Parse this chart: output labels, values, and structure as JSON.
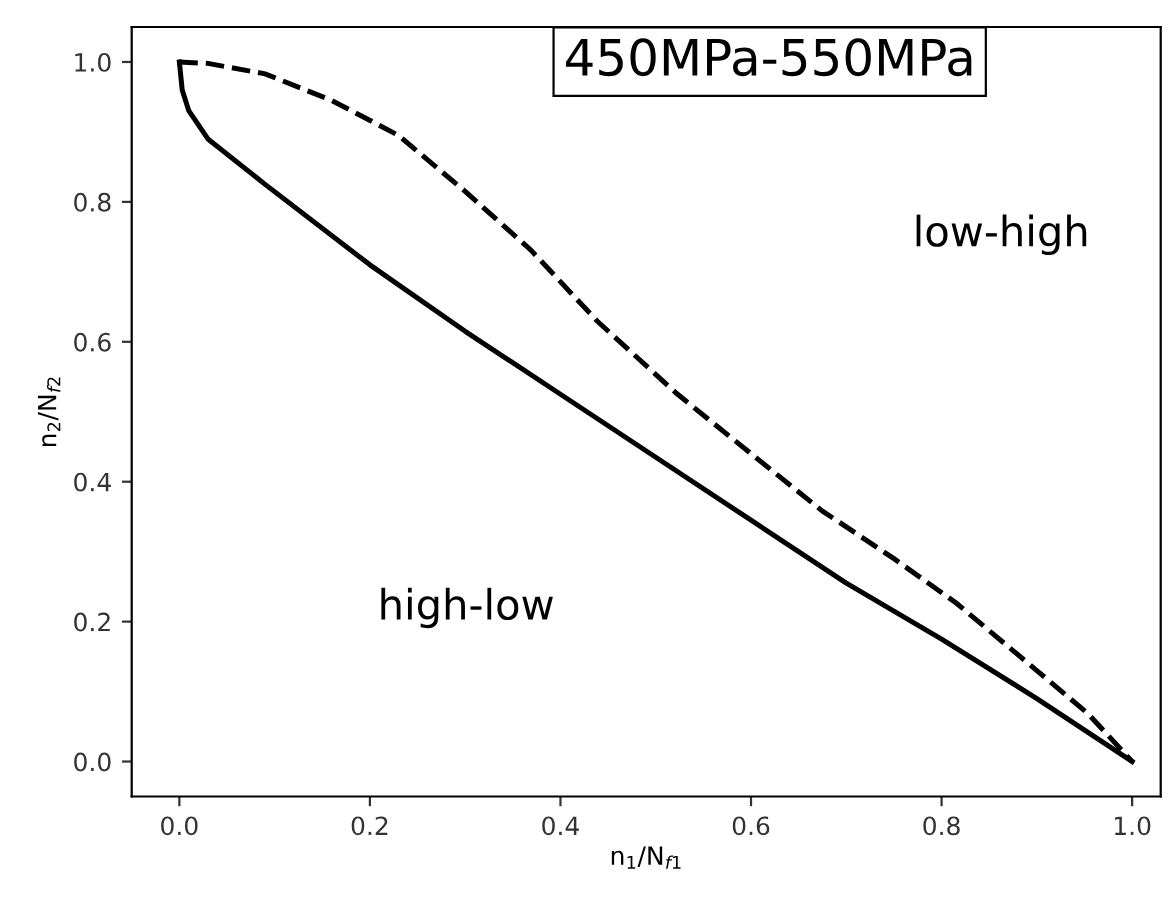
{
  "chart_data": {
    "type": "line",
    "title": "450MPa-550MPa",
    "xlabel": "n$_{1}$/N$_{f1}$",
    "ylabel": "n$_{2}$/N$_{f2}$",
    "series": [
      {
        "color": "#000000",
        "line_style": "solid",
        "x": [
          0,
          0.003,
          0.01,
          0.03,
          0.09,
          0.2,
          0.3,
          0.4,
          0.5,
          0.6,
          0.7,
          0.8,
          0.9,
          1
        ],
        "values": [
          1,
          0.96,
          0.93,
          0.89,
          0.825,
          0.71,
          0.615,
          0.525,
          0.435,
          0.345,
          0.255,
          0.175,
          0.09,
          0
        ]
      },
      {
        "color": "#000000",
        "line_style": "dashed",
        "x": [
          0,
          0.03,
          0.09,
          0.16,
          0.23,
          0.3,
          0.369,
          0.439,
          0.522,
          0.6,
          0.675,
          0.75,
          0.815,
          0.9,
          0.954,
          1
        ],
        "values": [
          1,
          0.998,
          0.983,
          0.945,
          0.895,
          0.815,
          0.731,
          0.629,
          0.526,
          0.44,
          0.358,
          0.29,
          0.227,
          0.13,
          0.068,
          0
        ]
      }
    ],
    "annotations": [
      "low-high",
      "high-low"
    ],
    "xlim": [
      -0.05,
      1.03
    ],
    "ylim": [
      -0.05,
      1.05
    ],
    "xticks": [
      {
        "value": 0,
        "label": "0.0"
      },
      0.2,
      0.4,
      0.6,
      0.8,
      {
        "value": 1,
        "label": "1.0"
      }
    ],
    "yticks": [
      {
        "value": 0,
        "label": "0.0"
      },
      0.2,
      0.4,
      0.6,
      0.8,
      {
        "value": 1,
        "label": "1.0"
      }
    ],
    "grid": false,
    "legend": false
  }
}
